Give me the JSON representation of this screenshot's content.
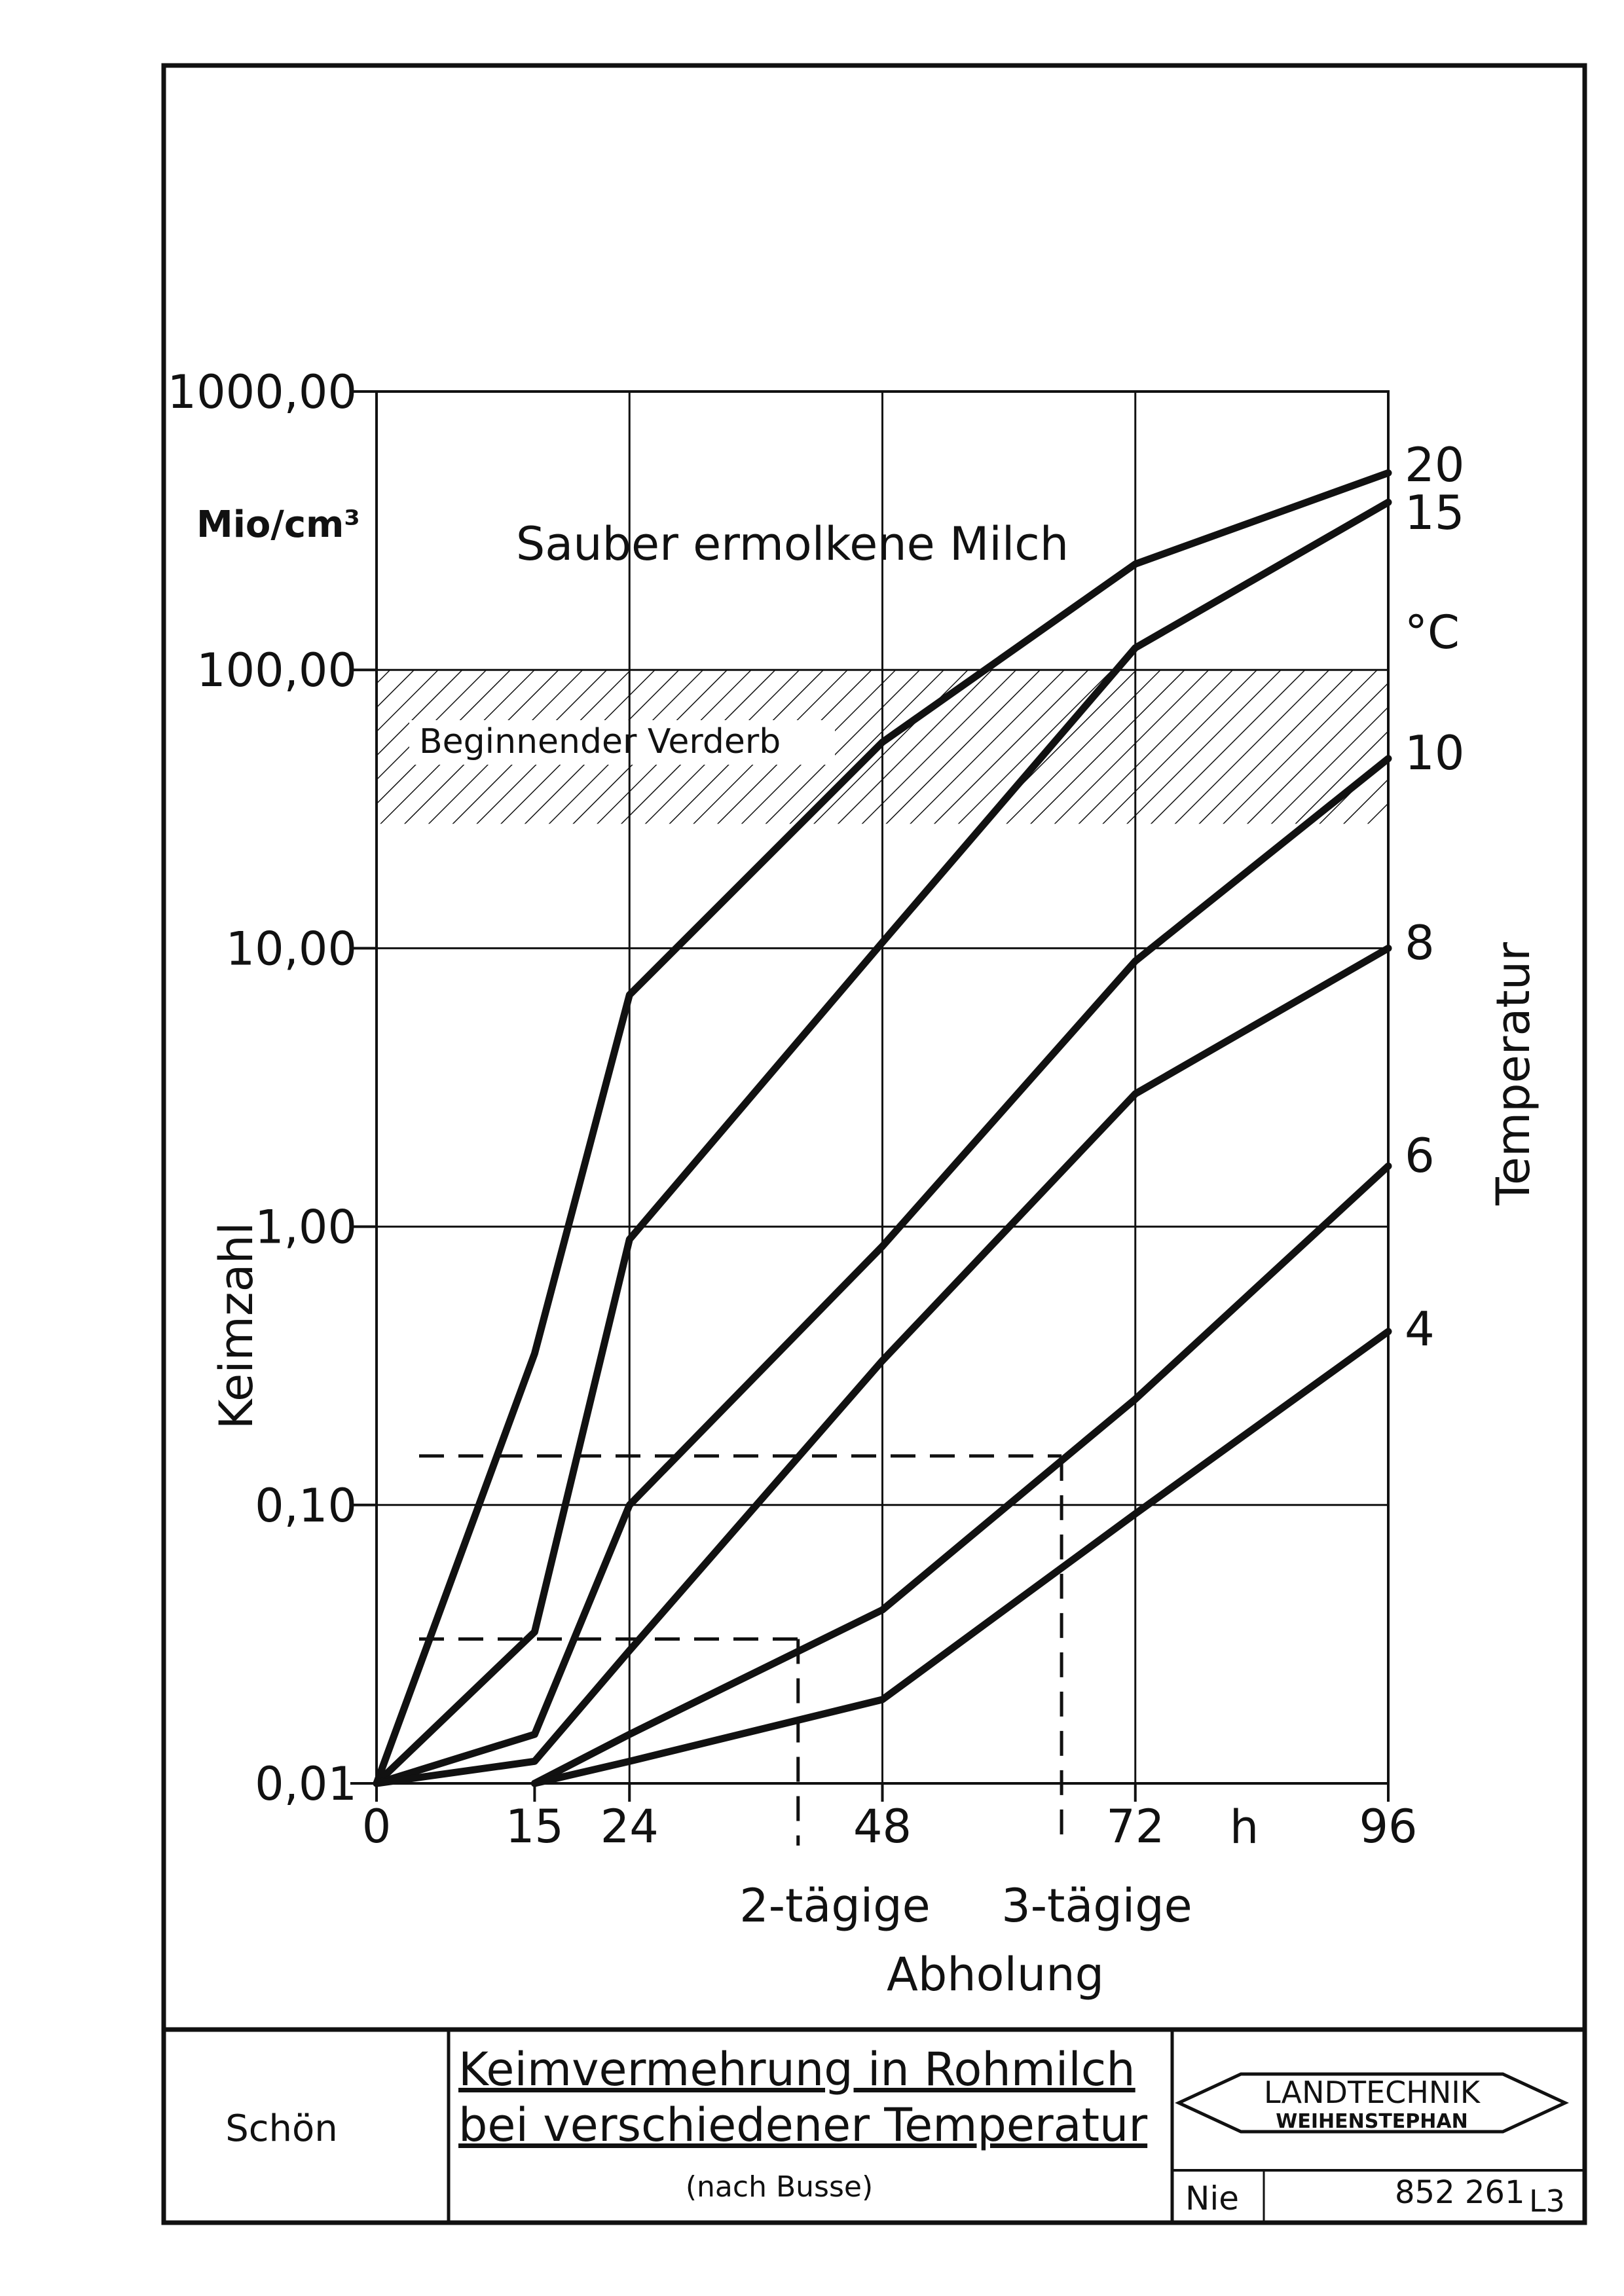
{
  "chart_data": {
    "type": "line",
    "ylabel": "Keimzahl",
    "yunit": "Mio/cm³",
    "xlabel": "Abholung",
    "xunit": "h",
    "right_axis_label": "Temperatur",
    "temperature_unit": "°C",
    "y_scale": "log",
    "ylim": [
      0.01,
      1000
    ],
    "xlim": [
      0,
      96
    ],
    "grid": true,
    "y_ticks": [
      {
        "value": 0.01,
        "label": "0,01"
      },
      {
        "value": 0.1,
        "label": "0,10"
      },
      {
        "value": 1,
        "label": "1,00"
      },
      {
        "value": 10,
        "label": "10,00"
      },
      {
        "value": 100,
        "label": "100,00"
      },
      {
        "value": 1000,
        "label": "1000,00"
      }
    ],
    "x_ticks": [
      {
        "value": 0,
        "label": "0"
      },
      {
        "value": 15,
        "label": "15"
      },
      {
        "value": 24,
        "label": "24"
      },
      {
        "value": 48,
        "label": "48"
      },
      {
        "value": 72,
        "label": "72"
      },
      {
        "value": 96,
        "label": "96"
      }
    ],
    "x_gridlines": [
      24,
      48,
      72
    ],
    "y_gridlines": [
      0.1,
      1,
      10,
      100
    ],
    "series": [
      {
        "name": "20",
        "x": [
          0,
          15,
          24,
          48,
          72,
          96
        ],
        "y": [
          0.01,
          0.35,
          6.8,
          55,
          240,
          510
        ]
      },
      {
        "name": "15",
        "x": [
          0,
          15,
          24,
          48,
          72,
          96
        ],
        "y": [
          0.01,
          0.035,
          0.9,
          10.5,
          120,
          400
        ]
      },
      {
        "name": "10",
        "x": [
          0,
          15,
          24,
          48,
          72,
          96
        ],
        "y": [
          0.01,
          0.015,
          0.1,
          0.85,
          9,
          48
        ]
      },
      {
        "name": "8",
        "x": [
          0,
          15,
          24,
          48,
          72,
          96
        ],
        "y": [
          0.01,
          0.012,
          0.03,
          0.33,
          3,
          10
        ]
      },
      {
        "name": "6",
        "x": [
          15,
          24,
          48,
          72,
          96
        ],
        "y": [
          0.01,
          0.015,
          0.042,
          0.24,
          1.65
        ]
      },
      {
        "name": "4",
        "x": [
          15,
          24,
          48,
          72,
          96
        ],
        "y": [
          0.01,
          0.012,
          0.02,
          0.093,
          0.42
        ]
      }
    ],
    "bands": [
      {
        "label": "Beginnender Verderb",
        "y_from": 28,
        "y_to": 100,
        "pattern": "hatched"
      }
    ],
    "region_labels": [
      {
        "label": "Sauber ermolkene Milch"
      }
    ],
    "reference_lines": [
      {
        "label": "2-tägige",
        "x": 40,
        "y": 0.033
      },
      {
        "label": "3-tägige",
        "x": 65,
        "y": 0.15
      }
    ]
  },
  "footer": {
    "author": "Schön",
    "title_line1": "Keimvermehrung in Rohmilch",
    "title_line2": "bei verschiedener Temperatur",
    "subtitle": "(nach Busse)",
    "logo_line1": "LANDTECHNIK",
    "logo_line2": "WEIHENSTEPHAN",
    "drawer": "Nie",
    "drawing_number": "852 261",
    "sheet": "L3"
  },
  "colors": {
    "ink": "#111111",
    "paper": "#ffffff"
  }
}
